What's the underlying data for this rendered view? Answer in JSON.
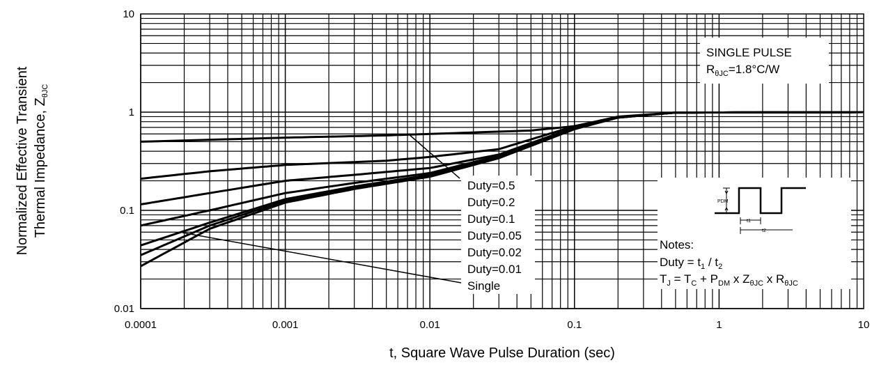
{
  "chart_data": {
    "type": "line",
    "title": "",
    "xlabel": "t, Square Wave Pulse Duration (sec)",
    "ylabel_line1": "Normalized Effective Transient",
    "ylabel_line2_main": "Thermal Impedance, Z",
    "ylabel_line2_sub": "θJC",
    "xscale": "log",
    "yscale": "log",
    "xlim": [
      0.0001,
      10
    ],
    "ylim": [
      0.01,
      10
    ],
    "grid": true,
    "x_ticks": [
      "0.0001",
      "0.001",
      "0.01",
      "0.1",
      "1",
      "10"
    ],
    "y_ticks": [
      "0.01",
      "0.1",
      "1",
      "10"
    ],
    "series": [
      {
        "name": "Duty=0.5",
        "x": [
          0.0001,
          0.001,
          0.005,
          0.01,
          0.05,
          0.1,
          0.2,
          0.5,
          10
        ],
        "y": [
          0.5,
          0.55,
          0.58,
          0.6,
          0.65,
          0.72,
          0.88,
          0.99,
          1.0
        ]
      },
      {
        "name": "Duty=0.2",
        "x": [
          0.0001,
          0.0003,
          0.001,
          0.005,
          0.01,
          0.03,
          0.1,
          0.2,
          0.5,
          10
        ],
        "y": [
          0.21,
          0.25,
          0.29,
          0.32,
          0.35,
          0.42,
          0.72,
          0.9,
          0.99,
          1.0
        ]
      },
      {
        "name": "Duty=0.1",
        "x": [
          0.0001,
          0.0003,
          0.001,
          0.003,
          0.01,
          0.03,
          0.1,
          0.2,
          0.5,
          10
        ],
        "y": [
          0.115,
          0.15,
          0.2,
          0.23,
          0.27,
          0.37,
          0.7,
          0.89,
          0.99,
          1.0
        ]
      },
      {
        "name": "Duty=0.05",
        "x": [
          0.0001,
          0.0003,
          0.001,
          0.003,
          0.01,
          0.03,
          0.1,
          0.2,
          0.5,
          10
        ],
        "y": [
          0.07,
          0.1,
          0.15,
          0.19,
          0.24,
          0.36,
          0.69,
          0.89,
          0.99,
          1.0
        ]
      },
      {
        "name": "Duty=0.02",
        "x": [
          0.0001,
          0.0003,
          0.001,
          0.003,
          0.01,
          0.03,
          0.1,
          0.2,
          0.5,
          10
        ],
        "y": [
          0.044,
          0.075,
          0.13,
          0.175,
          0.23,
          0.35,
          0.68,
          0.88,
          0.99,
          1.0
        ]
      },
      {
        "name": "Duty=0.01",
        "x": [
          0.0001,
          0.0003,
          0.001,
          0.003,
          0.01,
          0.03,
          0.1,
          0.2,
          0.5,
          10
        ],
        "y": [
          0.035,
          0.07,
          0.125,
          0.17,
          0.225,
          0.35,
          0.68,
          0.88,
          0.99,
          1.0
        ]
      },
      {
        "name": "Single",
        "x": [
          0.0001,
          0.0003,
          0.001,
          0.003,
          0.01,
          0.03,
          0.1,
          0.2,
          0.5,
          10
        ],
        "y": [
          0.027,
          0.065,
          0.12,
          0.165,
          0.22,
          0.34,
          0.67,
          0.88,
          0.99,
          1.0
        ]
      }
    ],
    "duty_labels": [
      "Duty=0.5",
      "Duty=0.2",
      "Duty=0.1",
      "Duty=0.05",
      "Duty=0.02",
      "Duty=0.01",
      "Single"
    ],
    "annotation_single_pulse": {
      "line1": "SINGLE PULSE",
      "line2_main": "R",
      "line2_sub": "θJC",
      "line2_rest": "=1.8°C/W"
    },
    "notes": {
      "title": "Notes:",
      "duty_formula": {
        "a": "Duty = t",
        "s1": "1",
        "b": " / t",
        "s2": "2"
      },
      "tj_formula": {
        "p1": "T",
        "s1": "J",
        "p2": " = T",
        "s2": "C",
        "p3": " + P",
        "s3": "DM",
        "p4": " x Z",
        "s4": "θJC",
        "p5": " x R",
        "s5": "θJC"
      },
      "waveform_labels": {
        "pdm": "PDM",
        "t1": "t1",
        "t2": "t2"
      }
    }
  }
}
